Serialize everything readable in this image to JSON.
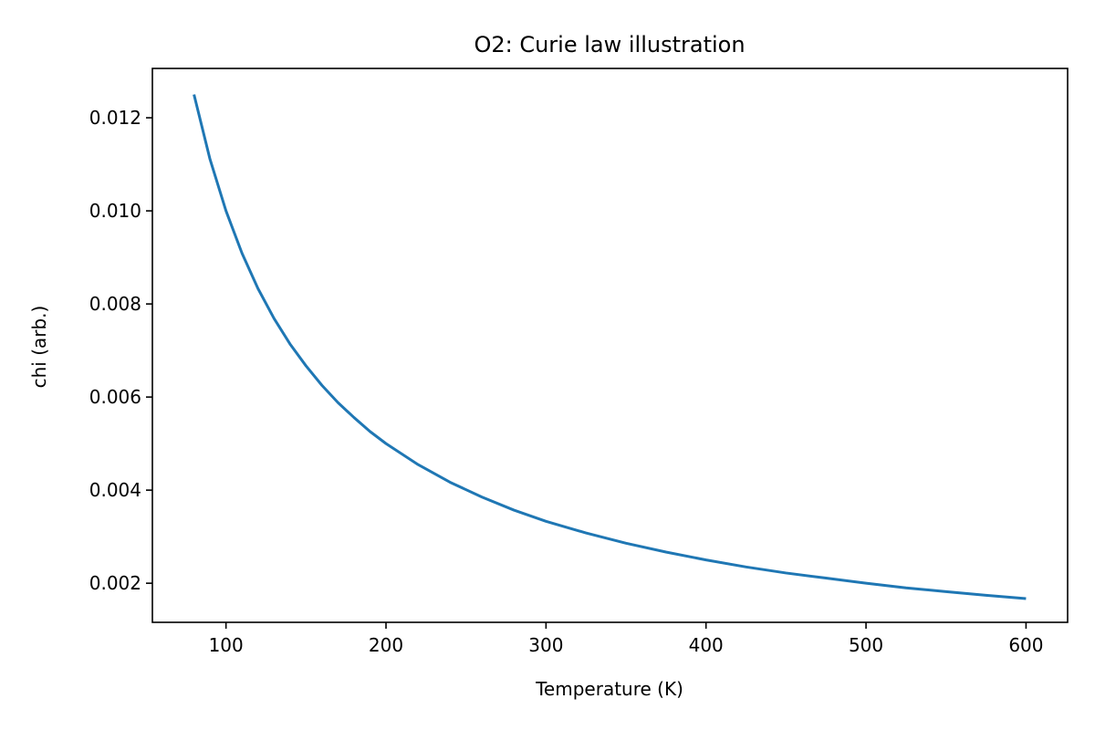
{
  "chart_data": {
    "type": "line",
    "title": "O2: Curie law illustration",
    "xlabel": "Temperature (K)",
    "ylabel": "chi (arb.)",
    "xlim": [
      54,
      626
    ],
    "ylim": [
      0.00116,
      0.01306
    ],
    "grid": false,
    "x_ticks": [
      100,
      200,
      300,
      400,
      500,
      600
    ],
    "x_tick_labels": [
      "100",
      "200",
      "300",
      "400",
      "500",
      "600"
    ],
    "y_ticks": [
      0.002,
      0.004,
      0.006,
      0.008,
      0.01,
      0.012
    ],
    "y_tick_labels": [
      "0.002",
      "0.004",
      "0.006",
      "0.008",
      "0.010",
      "0.012"
    ],
    "series": [
      {
        "color": "#1f77b4",
        "x": [
          80,
          90,
          100,
          110,
          120,
          130,
          140,
          150,
          160,
          170,
          180,
          190,
          200,
          220,
          240,
          260,
          280,
          300,
          325,
          350,
          375,
          400,
          425,
          450,
          475,
          500,
          525,
          550,
          575,
          600
        ],
        "y": [
          0.0125,
          0.01111,
          0.01,
          0.00909,
          0.00833,
          0.00769,
          0.00714,
          0.00667,
          0.00625,
          0.00588,
          0.00556,
          0.00526,
          0.005,
          0.00455,
          0.00417,
          0.00385,
          0.00357,
          0.00333,
          0.00308,
          0.00286,
          0.00267,
          0.0025,
          0.00235,
          0.00222,
          0.00211,
          0.002,
          0.0019,
          0.00182,
          0.00174,
          0.00167
        ]
      }
    ]
  }
}
